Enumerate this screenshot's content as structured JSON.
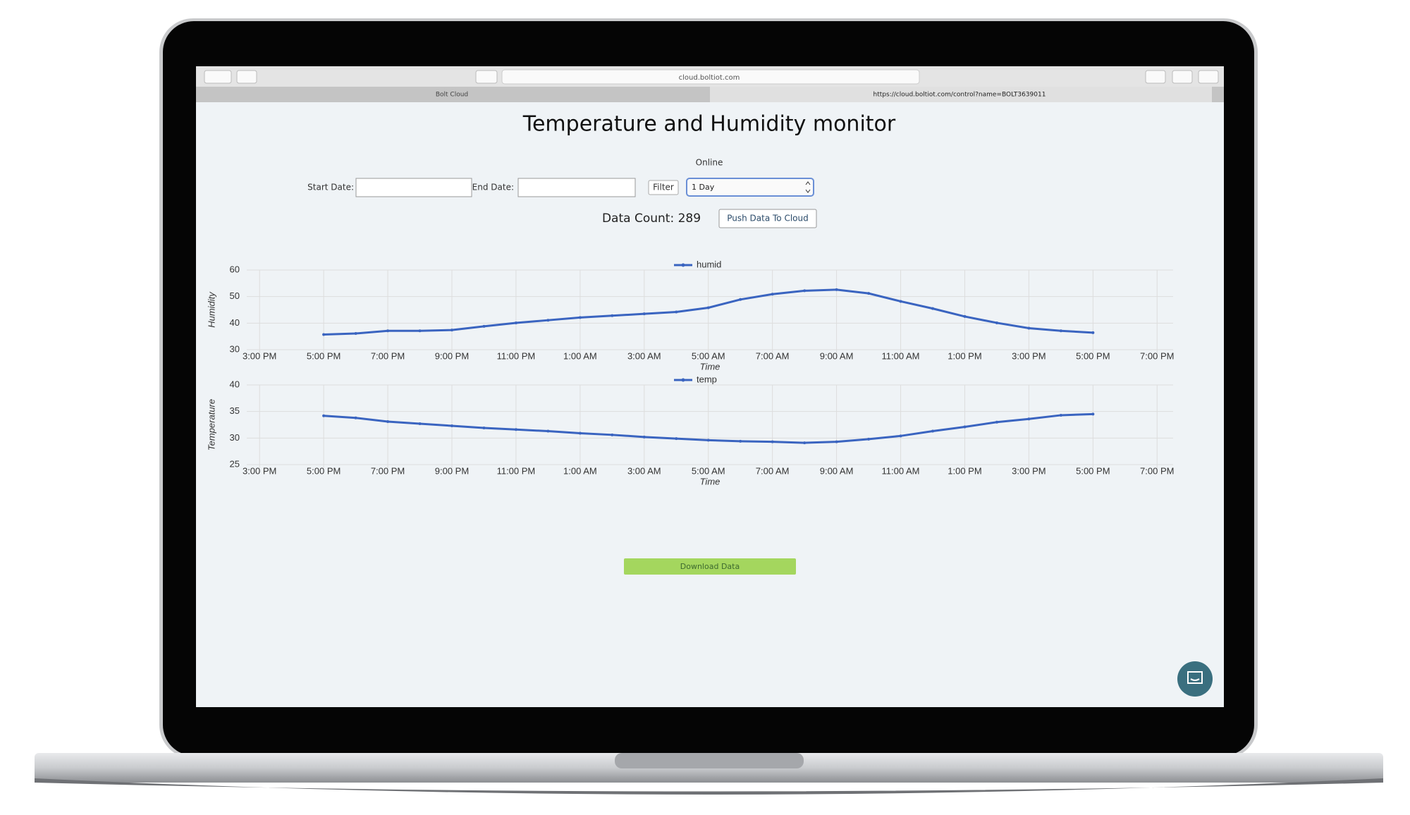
{
  "browser": {
    "address": "cloud.boltiot.com",
    "tabs": [
      "Bolt Cloud",
      "https://cloud.boltiot.com/control?name=BOLT3639011"
    ]
  },
  "page": {
    "title": "Temperature and Humidity monitor",
    "status": "Online",
    "start_label": "Start Date:",
    "end_label": "End Date:",
    "filter_button": "Filter",
    "range_select": "1 Day",
    "data_count": "Data Count: 289",
    "push_button": "Push Data To Cloud",
    "download_button": "Download Data"
  },
  "chart_data": [
    {
      "type": "line",
      "y_label": "Humidity",
      "x_label": "Time",
      "x": [
        17,
        18,
        19,
        20,
        21,
        22,
        23,
        24,
        25,
        26,
        27,
        28,
        29,
        30,
        31,
        32,
        33,
        34,
        35,
        36,
        37,
        38,
        39,
        40,
        41
      ],
      "series": [
        {
          "name": "humid",
          "color": "#3a64c0",
          "values": [
            35.7,
            36.1,
            37.1,
            37.1,
            37.4,
            38.8,
            40.1,
            41.1,
            42.1,
            42.8,
            43.5,
            44.2,
            45.8,
            48.9,
            50.9,
            52.2,
            52.6,
            51.2,
            48.2,
            45.5,
            42.5,
            40.1,
            38.1,
            37.1,
            36.4
          ]
        }
      ],
      "xlim": [
        14.6,
        43.5
      ],
      "xticks": [
        {
          "value": 15,
          "label": "3:00 PM"
        },
        {
          "value": 17,
          "label": "5:00 PM"
        },
        {
          "value": 19,
          "label": "7:00 PM"
        },
        {
          "value": 21,
          "label": "9:00 PM"
        },
        {
          "value": 23,
          "label": "11:00 PM"
        },
        {
          "value": 25,
          "label": "1:00 AM"
        },
        {
          "value": 27,
          "label": "3:00 AM"
        },
        {
          "value": 29,
          "label": "5:00 AM"
        },
        {
          "value": 31,
          "label": "7:00 AM"
        },
        {
          "value": 33,
          "label": "9:00 AM"
        },
        {
          "value": 35,
          "label": "11:00 AM"
        },
        {
          "value": 37,
          "label": "1:00 PM"
        },
        {
          "value": 39,
          "label": "3:00 PM"
        },
        {
          "value": 41,
          "label": "5:00 PM"
        },
        {
          "value": 43,
          "label": "7:00 PM"
        }
      ],
      "ylim": [
        30,
        60
      ],
      "yticks": [
        30,
        40,
        50,
        60
      ],
      "grid": true,
      "legend": "top"
    },
    {
      "type": "line",
      "y_label": "Temperature",
      "x_label": "Time",
      "x": [
        17,
        18,
        19,
        20,
        21,
        22,
        23,
        24,
        25,
        26,
        27,
        28,
        29,
        30,
        31,
        32,
        33,
        34,
        35,
        36,
        37,
        38,
        39,
        40,
        41
      ],
      "series": [
        {
          "name": "temp",
          "color": "#3a64c0",
          "values": [
            34.2,
            33.8,
            33.1,
            32.7,
            32.3,
            31.9,
            31.6,
            31.3,
            30.9,
            30.6,
            30.2,
            29.9,
            29.6,
            29.4,
            29.3,
            29.1,
            29.3,
            29.8,
            30.4,
            31.3,
            32.1,
            33.0,
            33.6,
            34.3,
            34.5
          ]
        }
      ],
      "xlim": [
        14.6,
        43.5
      ],
      "xticks": [
        {
          "value": 15,
          "label": "3:00 PM"
        },
        {
          "value": 17,
          "label": "5:00 PM"
        },
        {
          "value": 19,
          "label": "7:00 PM"
        },
        {
          "value": 21,
          "label": "9:00 PM"
        },
        {
          "value": 23,
          "label": "11:00 PM"
        },
        {
          "value": 25,
          "label": "1:00 AM"
        },
        {
          "value": 27,
          "label": "3:00 AM"
        },
        {
          "value": 29,
          "label": "5:00 AM"
        },
        {
          "value": 31,
          "label": "7:00 AM"
        },
        {
          "value": 33,
          "label": "9:00 AM"
        },
        {
          "value": 35,
          "label": "11:00 AM"
        },
        {
          "value": 37,
          "label": "1:00 PM"
        },
        {
          "value": 39,
          "label": "3:00 PM"
        },
        {
          "value": 41,
          "label": "5:00 PM"
        },
        {
          "value": 43,
          "label": "7:00 PM"
        }
      ],
      "ylim": [
        25,
        40
      ],
      "yticks": [
        25,
        30,
        35,
        40
      ],
      "grid": true,
      "legend": "top"
    }
  ]
}
